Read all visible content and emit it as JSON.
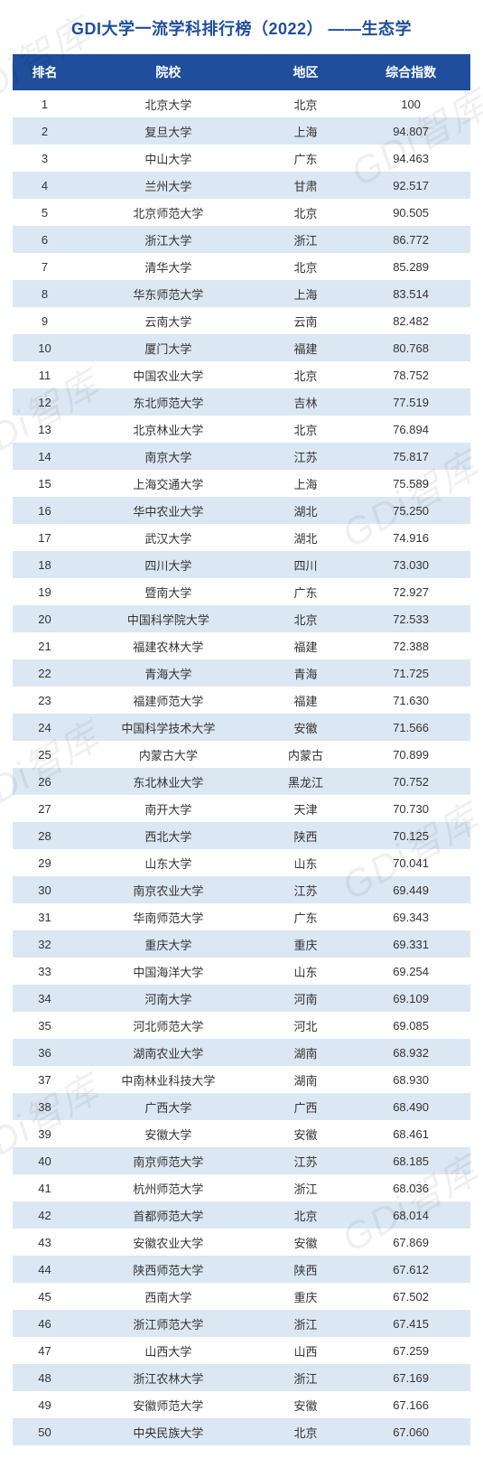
{
  "title": "GDI大学一流学科排行榜（2022） ——生态学",
  "watermark_text": "GDi智库",
  "style": {
    "title_color": "#1f4e9c",
    "title_fontsize": 18,
    "header_bg": "#1f4e9c",
    "header_color": "#ffffff",
    "header_fontsize": 14,
    "row_even_bg": "#ffffff",
    "row_odd_bg": "#dbe7f3",
    "row_text_color": "#333333",
    "row_fontsize": 13,
    "watermark_color": "rgba(0,0,0,0.06)"
  },
  "columns": [
    "排名",
    "院校",
    "地区",
    "综合指数"
  ],
  "rows": [
    {
      "rank": "1",
      "uni": "北京大学",
      "region": "北京",
      "score": "100"
    },
    {
      "rank": "2",
      "uni": "复旦大学",
      "region": "上海",
      "score": "94.807"
    },
    {
      "rank": "3",
      "uni": "中山大学",
      "region": "广东",
      "score": "94.463"
    },
    {
      "rank": "4",
      "uni": "兰州大学",
      "region": "甘肃",
      "score": "92.517"
    },
    {
      "rank": "5",
      "uni": "北京师范大学",
      "region": "北京",
      "score": "90.505"
    },
    {
      "rank": "6",
      "uni": "浙江大学",
      "region": "浙江",
      "score": "86.772"
    },
    {
      "rank": "7",
      "uni": "清华大学",
      "region": "北京",
      "score": "85.289"
    },
    {
      "rank": "8",
      "uni": "华东师范大学",
      "region": "上海",
      "score": "83.514"
    },
    {
      "rank": "9",
      "uni": "云南大学",
      "region": "云南",
      "score": "82.482"
    },
    {
      "rank": "10",
      "uni": "厦门大学",
      "region": "福建",
      "score": "80.768"
    },
    {
      "rank": "11",
      "uni": "中国农业大学",
      "region": "北京",
      "score": "78.752"
    },
    {
      "rank": "12",
      "uni": "东北师范大学",
      "region": "吉林",
      "score": "77.519"
    },
    {
      "rank": "13",
      "uni": "北京林业大学",
      "region": "北京",
      "score": "76.894"
    },
    {
      "rank": "14",
      "uni": "南京大学",
      "region": "江苏",
      "score": "75.817"
    },
    {
      "rank": "15",
      "uni": "上海交通大学",
      "region": "上海",
      "score": "75.589"
    },
    {
      "rank": "16",
      "uni": "华中农业大学",
      "region": "湖北",
      "score": "75.250"
    },
    {
      "rank": "17",
      "uni": "武汉大学",
      "region": "湖北",
      "score": "74.916"
    },
    {
      "rank": "18",
      "uni": "四川大学",
      "region": "四川",
      "score": "73.030"
    },
    {
      "rank": "19",
      "uni": "暨南大学",
      "region": "广东",
      "score": "72.927"
    },
    {
      "rank": "20",
      "uni": "中国科学院大学",
      "region": "北京",
      "score": "72.533"
    },
    {
      "rank": "21",
      "uni": "福建农林大学",
      "region": "福建",
      "score": "72.388"
    },
    {
      "rank": "22",
      "uni": "青海大学",
      "region": "青海",
      "score": "71.725"
    },
    {
      "rank": "23",
      "uni": "福建师范大学",
      "region": "福建",
      "score": "71.630"
    },
    {
      "rank": "24",
      "uni": "中国科学技术大学",
      "region": "安徽",
      "score": "71.566"
    },
    {
      "rank": "25",
      "uni": "内蒙古大学",
      "region": "内蒙古",
      "score": "70.899"
    },
    {
      "rank": "26",
      "uni": "东北林业大学",
      "region": "黑龙江",
      "score": "70.752"
    },
    {
      "rank": "27",
      "uni": "南开大学",
      "region": "天津",
      "score": "70.730"
    },
    {
      "rank": "28",
      "uni": "西北大学",
      "region": "陕西",
      "score": "70.125"
    },
    {
      "rank": "29",
      "uni": "山东大学",
      "region": "山东",
      "score": "70.041"
    },
    {
      "rank": "30",
      "uni": "南京农业大学",
      "region": "江苏",
      "score": "69.449"
    },
    {
      "rank": "31",
      "uni": "华南师范大学",
      "region": "广东",
      "score": "69.343"
    },
    {
      "rank": "32",
      "uni": "重庆大学",
      "region": "重庆",
      "score": "69.331"
    },
    {
      "rank": "33",
      "uni": "中国海洋大学",
      "region": "山东",
      "score": "69.254"
    },
    {
      "rank": "34",
      "uni": "河南大学",
      "region": "河南",
      "score": "69.109"
    },
    {
      "rank": "35",
      "uni": "河北师范大学",
      "region": "河北",
      "score": "69.085"
    },
    {
      "rank": "36",
      "uni": "湖南农业大学",
      "region": "湖南",
      "score": "68.932"
    },
    {
      "rank": "37",
      "uni": "中南林业科技大学",
      "region": "湖南",
      "score": "68.930"
    },
    {
      "rank": "38",
      "uni": "广西大学",
      "region": "广西",
      "score": "68.490"
    },
    {
      "rank": "39",
      "uni": "安徽大学",
      "region": "安徽",
      "score": "68.461"
    },
    {
      "rank": "40",
      "uni": "南京师范大学",
      "region": "江苏",
      "score": "68.185"
    },
    {
      "rank": "41",
      "uni": "杭州师范大学",
      "region": "浙江",
      "score": "68.036"
    },
    {
      "rank": "42",
      "uni": "首都师范大学",
      "region": "北京",
      "score": "68.014"
    },
    {
      "rank": "43",
      "uni": "安徽农业大学",
      "region": "安徽",
      "score": "67.869"
    },
    {
      "rank": "44",
      "uni": "陕西师范大学",
      "region": "陕西",
      "score": "67.612"
    },
    {
      "rank": "45",
      "uni": "西南大学",
      "region": "重庆",
      "score": "67.502"
    },
    {
      "rank": "46",
      "uni": "浙江师范大学",
      "region": "浙江",
      "score": "67.415"
    },
    {
      "rank": "47",
      "uni": "山西大学",
      "region": "山西",
      "score": "67.259"
    },
    {
      "rank": "48",
      "uni": "浙江农林大学",
      "region": "浙江",
      "score": "67.169"
    },
    {
      "rank": "49",
      "uni": "安徽师范大学",
      "region": "安徽",
      "score": "67.166"
    },
    {
      "rank": "50",
      "uni": "中央民族大学",
      "region": "北京",
      "score": "67.060"
    }
  ]
}
